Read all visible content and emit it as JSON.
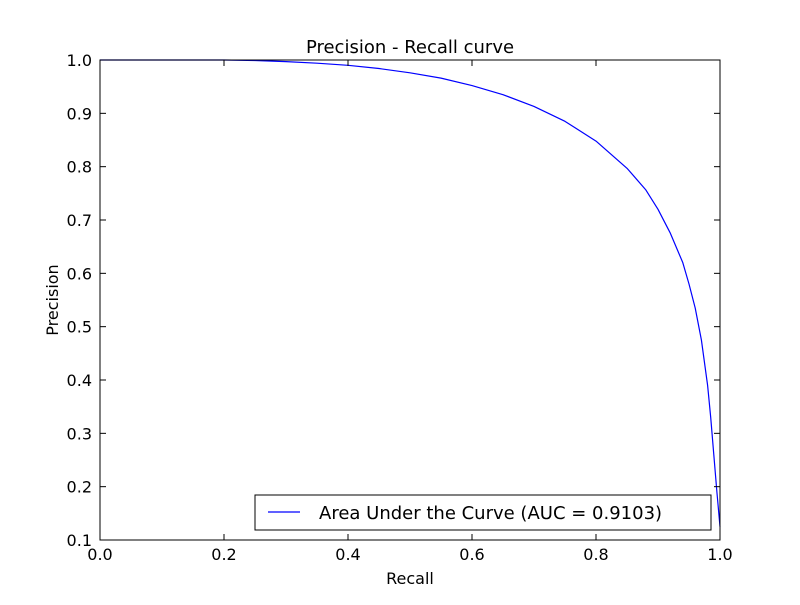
{
  "chart_data": {
    "type": "line",
    "title": "Precision - Recall curve",
    "xlabel": "Recall",
    "ylabel": "Precision",
    "xlim": [
      0.0,
      1.0
    ],
    "ylim": [
      0.1,
      1.0
    ],
    "x_ticks": [
      0.0,
      0.2,
      0.4,
      0.6,
      0.8,
      1.0
    ],
    "x_tick_labels": [
      "0.0",
      "0.2",
      "0.4",
      "0.6",
      "0.8",
      "1.0"
    ],
    "y_ticks": [
      0.1,
      0.2,
      0.3,
      0.4,
      0.5,
      0.6,
      0.7,
      0.8,
      0.9,
      1.0
    ],
    "y_tick_labels": [
      "0.1",
      "0.2",
      "0.3",
      "0.4",
      "0.5",
      "0.6",
      "0.7",
      "0.8",
      "0.9",
      "1.0"
    ],
    "grid": false,
    "legend_position": "lower right",
    "series": [
      {
        "name": "Area Under the Curve (AUC = 0.9103)",
        "color": "#0000ff",
        "x": [
          0.0,
          0.2,
          0.25,
          0.3,
          0.35,
          0.4,
          0.45,
          0.5,
          0.55,
          0.6,
          0.65,
          0.7,
          0.75,
          0.8,
          0.85,
          0.88,
          0.9,
          0.92,
          0.94,
          0.95,
          0.96,
          0.97,
          0.98,
          0.985,
          0.99,
          0.995,
          1.0,
          1.0
        ],
        "y": [
          1.0,
          1.0,
          0.999,
          0.997,
          0.994,
          0.99,
          0.984,
          0.976,
          0.966,
          0.952,
          0.935,
          0.913,
          0.885,
          0.848,
          0.797,
          0.757,
          0.72,
          0.675,
          0.62,
          0.58,
          0.535,
          0.475,
          0.39,
          0.33,
          0.26,
          0.19,
          0.125,
          0.125
        ]
      }
    ]
  }
}
